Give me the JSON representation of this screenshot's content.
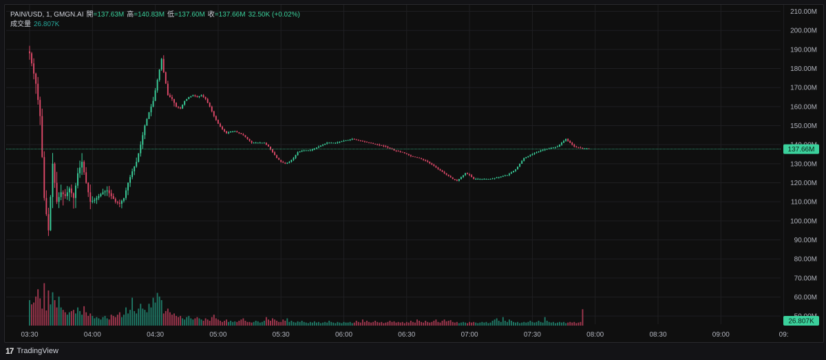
{
  "legend": {
    "symbol": "PAIN/USD, 1, GMGN.AI",
    "open_label": "開",
    "open": "=137.63M",
    "high_label": "高",
    "high": "=140.83M",
    "low_label": "低",
    "low": "=137.60M",
    "close_label": "收",
    "close": "=137.66M",
    "change": "32.50K (+0.02%)",
    "volume_label": "成交量",
    "volume": "26.807K"
  },
  "price_badge": "137.66M",
  "volume_badge": "26.807K",
  "footer": {
    "brand": "TradingView",
    "logo": "17"
  },
  "colors": {
    "up": "#3bd19c",
    "down": "#e24a6a",
    "vol_up": "#1f7a67",
    "vol_down": "#a1374f",
    "badge": "#3bd19c",
    "grid": "#1f1f22"
  },
  "chart_data": {
    "type": "candlestick",
    "title": "",
    "x_tick_labels": [
      "03:30",
      "04:00",
      "04:30",
      "05:00",
      "05:30",
      "06:00",
      "06:30",
      "07:00",
      "07:30",
      "08:00",
      "08:30",
      "09:00",
      "09:"
    ],
    "y_tick_labels": [
      "210.00M",
      "200.00M",
      "190.00M",
      "180.00M",
      "170.00M",
      "160.00M",
      "150.00M",
      "140.00M",
      "130.00M",
      "120.00M",
      "110.00M",
      "100.00M",
      "90.00M",
      "80.00M",
      "70.00M",
      "60.00M",
      "50.00M"
    ],
    "ylim": [
      45,
      212
    ],
    "y_unit": "M",
    "grid": true,
    "last_price": 137.66,
    "x_start_time": "03:30",
    "minutes_per_candle": 1,
    "price_path_anchors": [
      [
        0,
        188
      ],
      [
        3,
        172
      ],
      [
        5,
        155
      ],
      [
        7,
        112
      ],
      [
        9,
        95
      ],
      [
        11,
        130
      ],
      [
        13,
        110
      ],
      [
        15,
        115
      ],
      [
        17,
        113
      ],
      [
        19,
        117
      ],
      [
        21,
        112
      ],
      [
        23,
        125
      ],
      [
        25,
        131
      ],
      [
        27,
        120
      ],
      [
        29,
        110
      ],
      [
        31,
        111
      ],
      [
        33,
        113
      ],
      [
        35,
        115
      ],
      [
        37,
        116
      ],
      [
        39,
        113
      ],
      [
        41,
        110
      ],
      [
        43,
        109
      ],
      [
        45,
        112
      ],
      [
        47,
        120
      ],
      [
        49,
        126
      ],
      [
        51,
        131
      ],
      [
        53,
        140
      ],
      [
        55,
        150
      ],
      [
        57,
        157
      ],
      [
        59,
        163
      ],
      [
        61,
        174
      ],
      [
        63,
        185
      ],
      [
        64,
        178
      ],
      [
        66,
        166
      ],
      [
        68,
        164
      ],
      [
        70,
        160
      ],
      [
        72,
        159
      ],
      [
        74,
        163
      ],
      [
        76,
        165
      ],
      [
        78,
        166
      ],
      [
        80,
        165
      ],
      [
        82,
        166
      ],
      [
        84,
        164
      ],
      [
        86,
        160
      ],
      [
        88,
        155
      ],
      [
        90,
        151
      ],
      [
        92,
        148
      ],
      [
        94,
        146
      ],
      [
        96,
        147
      ],
      [
        98,
        147
      ],
      [
        100,
        146
      ],
      [
        102,
        145
      ],
      [
        104,
        143
      ],
      [
        106,
        141
      ],
      [
        108,
        141
      ],
      [
        112,
        141
      ],
      [
        114,
        139
      ],
      [
        116,
        136
      ],
      [
        118,
        133
      ],
      [
        120,
        131
      ],
      [
        122,
        130
      ],
      [
        124,
        131
      ],
      [
        126,
        133
      ],
      [
        128,
        136
      ],
      [
        130,
        137
      ],
      [
        134,
        137
      ],
      [
        138,
        139
      ],
      [
        142,
        141
      ],
      [
        146,
        141
      ],
      [
        150,
        142
      ],
      [
        154,
        143
      ],
      [
        158,
        142
      ],
      [
        162,
        141
      ],
      [
        166,
        140
      ],
      [
        170,
        139
      ],
      [
        174,
        137
      ],
      [
        178,
        136
      ],
      [
        182,
        134
      ],
      [
        186,
        133
      ],
      [
        190,
        131
      ],
      [
        194,
        128
      ],
      [
        198,
        125
      ],
      [
        202,
        122
      ],
      [
        204,
        121
      ],
      [
        206,
        123
      ],
      [
        208,
        125
      ],
      [
        210,
        124
      ],
      [
        212,
        122
      ],
      [
        216,
        122
      ],
      [
        220,
        122
      ],
      [
        224,
        123
      ],
      [
        228,
        124
      ],
      [
        232,
        127
      ],
      [
        234,
        130
      ],
      [
        236,
        133
      ],
      [
        240,
        135
      ],
      [
        244,
        137
      ],
      [
        248,
        138
      ],
      [
        252,
        139
      ],
      [
        254,
        141
      ],
      [
        256,
        143
      ],
      [
        258,
        141
      ],
      [
        260,
        139
      ],
      [
        264,
        138
      ],
      [
        267,
        138
      ]
    ],
    "volume": {
      "ylim": [
        0,
        100
      ],
      "values_k": [
        42,
        35,
        38,
        48,
        60,
        45,
        28,
        70,
        25,
        58,
        35,
        55,
        42,
        30,
        48,
        30,
        26,
        22,
        18,
        22,
        24,
        26,
        20,
        30,
        24,
        18,
        32,
        22,
        16,
        20,
        16,
        12,
        14,
        12,
        10,
        14,
        16,
        12,
        10,
        18,
        16,
        14,
        18,
        22,
        14,
        18,
        30,
        20,
        26,
        46,
        24,
        20,
        28,
        36,
        28,
        26,
        22,
        36,
        30,
        46,
        38,
        54,
        48,
        42,
        20,
        24,
        28,
        22,
        18,
        20,
        16,
        14,
        16,
        12,
        10,
        14,
        16,
        12,
        10,
        12,
        14,
        12,
        10,
        8,
        12,
        10,
        8,
        14,
        18,
        12,
        10,
        8,
        6,
        8,
        10,
        6,
        8,
        6,
        7,
        6,
        8,
        10,
        12,
        8,
        6,
        6,
        5,
        6,
        8,
        7,
        5,
        6,
        8,
        14,
        10,
        8,
        12,
        10,
        8,
        6,
        6,
        10,
        8,
        12,
        6,
        8,
        6,
        5,
        7,
        6,
        8,
        6,
        5,
        4,
        6,
        5,
        7,
        5,
        6,
        4,
        5,
        6,
        5,
        8,
        6,
        5,
        4,
        6,
        5,
        4,
        6,
        5,
        5,
        6,
        4,
        5,
        8,
        6,
        5,
        10,
        6,
        8,
        6,
        5,
        6,
        8,
        6,
        5,
        6,
        4,
        5,
        6,
        8,
        6,
        7,
        5,
        6,
        5,
        6,
        4,
        6,
        5,
        8,
        6,
        5,
        10,
        8,
        6,
        5,
        8,
        6,
        5,
        6,
        8,
        10,
        6,
        5,
        8,
        10,
        7,
        8,
        9,
        6,
        5,
        6,
        4,
        5,
        6,
        5,
        4,
        6,
        5,
        6,
        5,
        4,
        5,
        6,
        5,
        6,
        4,
        5,
        8,
        10,
        12,
        8,
        6,
        14,
        8,
        6,
        10,
        8,
        6,
        5,
        6,
        4,
        5,
        6,
        5,
        6,
        8,
        6,
        5,
        6,
        8,
        6,
        5,
        14,
        8,
        6,
        5,
        6,
        4,
        5,
        6,
        5,
        6,
        4,
        5,
        6,
        5,
        6,
        4,
        5,
        6,
        27
      ]
    }
  }
}
